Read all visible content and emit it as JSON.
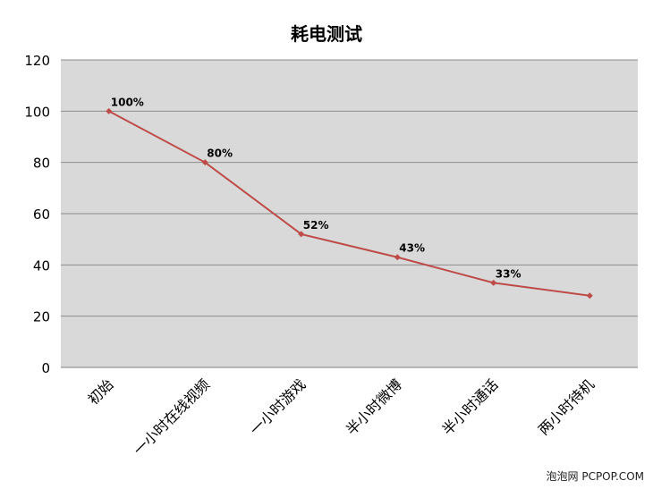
{
  "watermark": "泡泡网 PCPOP.COM",
  "chart_data": {
    "type": "line",
    "title": "耗电测试",
    "xlabel": "",
    "ylabel": "",
    "categories": [
      "初始",
      "一小时在线视频",
      "一小时游戏",
      "半小时微博",
      "半小时通话",
      "两小时待机"
    ],
    "series": [
      {
        "values": [
          100,
          80,
          52,
          43,
          33,
          28
        ],
        "data_labels": [
          "100%",
          "80%",
          "52%",
          "43%",
          "33%",
          ""
        ],
        "color": "#be4b48"
      }
    ],
    "ylim": [
      0,
      120
    ],
    "yticks": [
      0,
      20,
      40,
      60,
      80,
      100,
      120
    ],
    "grid": true,
    "plot_background": "#d9d9d9",
    "legend": "none"
  }
}
